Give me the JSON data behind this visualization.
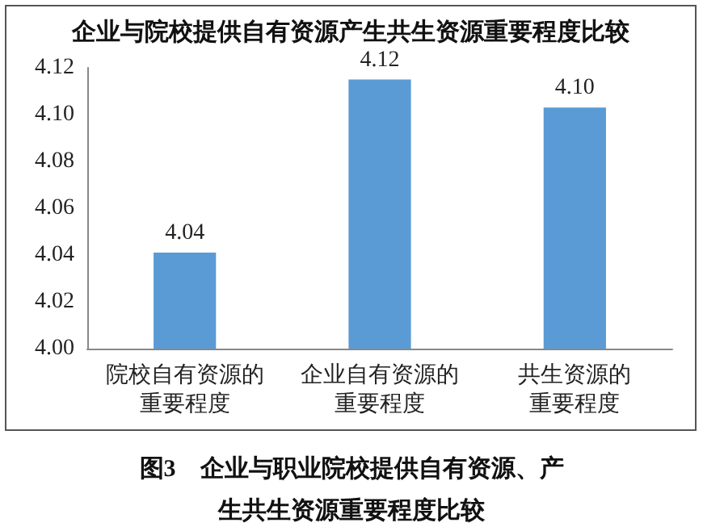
{
  "chart_data": {
    "type": "bar",
    "title": "企业与院校提供自有资源产生共生资源重要程度比较",
    "categories": [
      "院校自有资源的重要程度",
      "企业自有资源的重要程度",
      "共生资源的重要程度"
    ],
    "values": [
      4.041,
      4.115,
      4.103
    ],
    "color": "#5b9bd5",
    "value_labels": [
      "4.04",
      "4.12",
      "4.10"
    ],
    "ylim": [
      4.0,
      4.12
    ],
    "yticks": [
      {
        "value": 4.0,
        "label": "4.00"
      },
      {
        "value": 4.02,
        "label": "4.02"
      },
      {
        "value": 4.04,
        "label": "4.04"
      },
      {
        "value": 4.06,
        "label": "4.06"
      },
      {
        "value": 4.08,
        "label": "4.08"
      },
      {
        "value": 4.1,
        "label": "4.10"
      },
      {
        "value": 4.12,
        "label": "4.12"
      }
    ],
    "grid": false,
    "annotations": [
      "图3　企业与职业院校提供自有资源、产生共生资源重要程度比较"
    ]
  }
}
